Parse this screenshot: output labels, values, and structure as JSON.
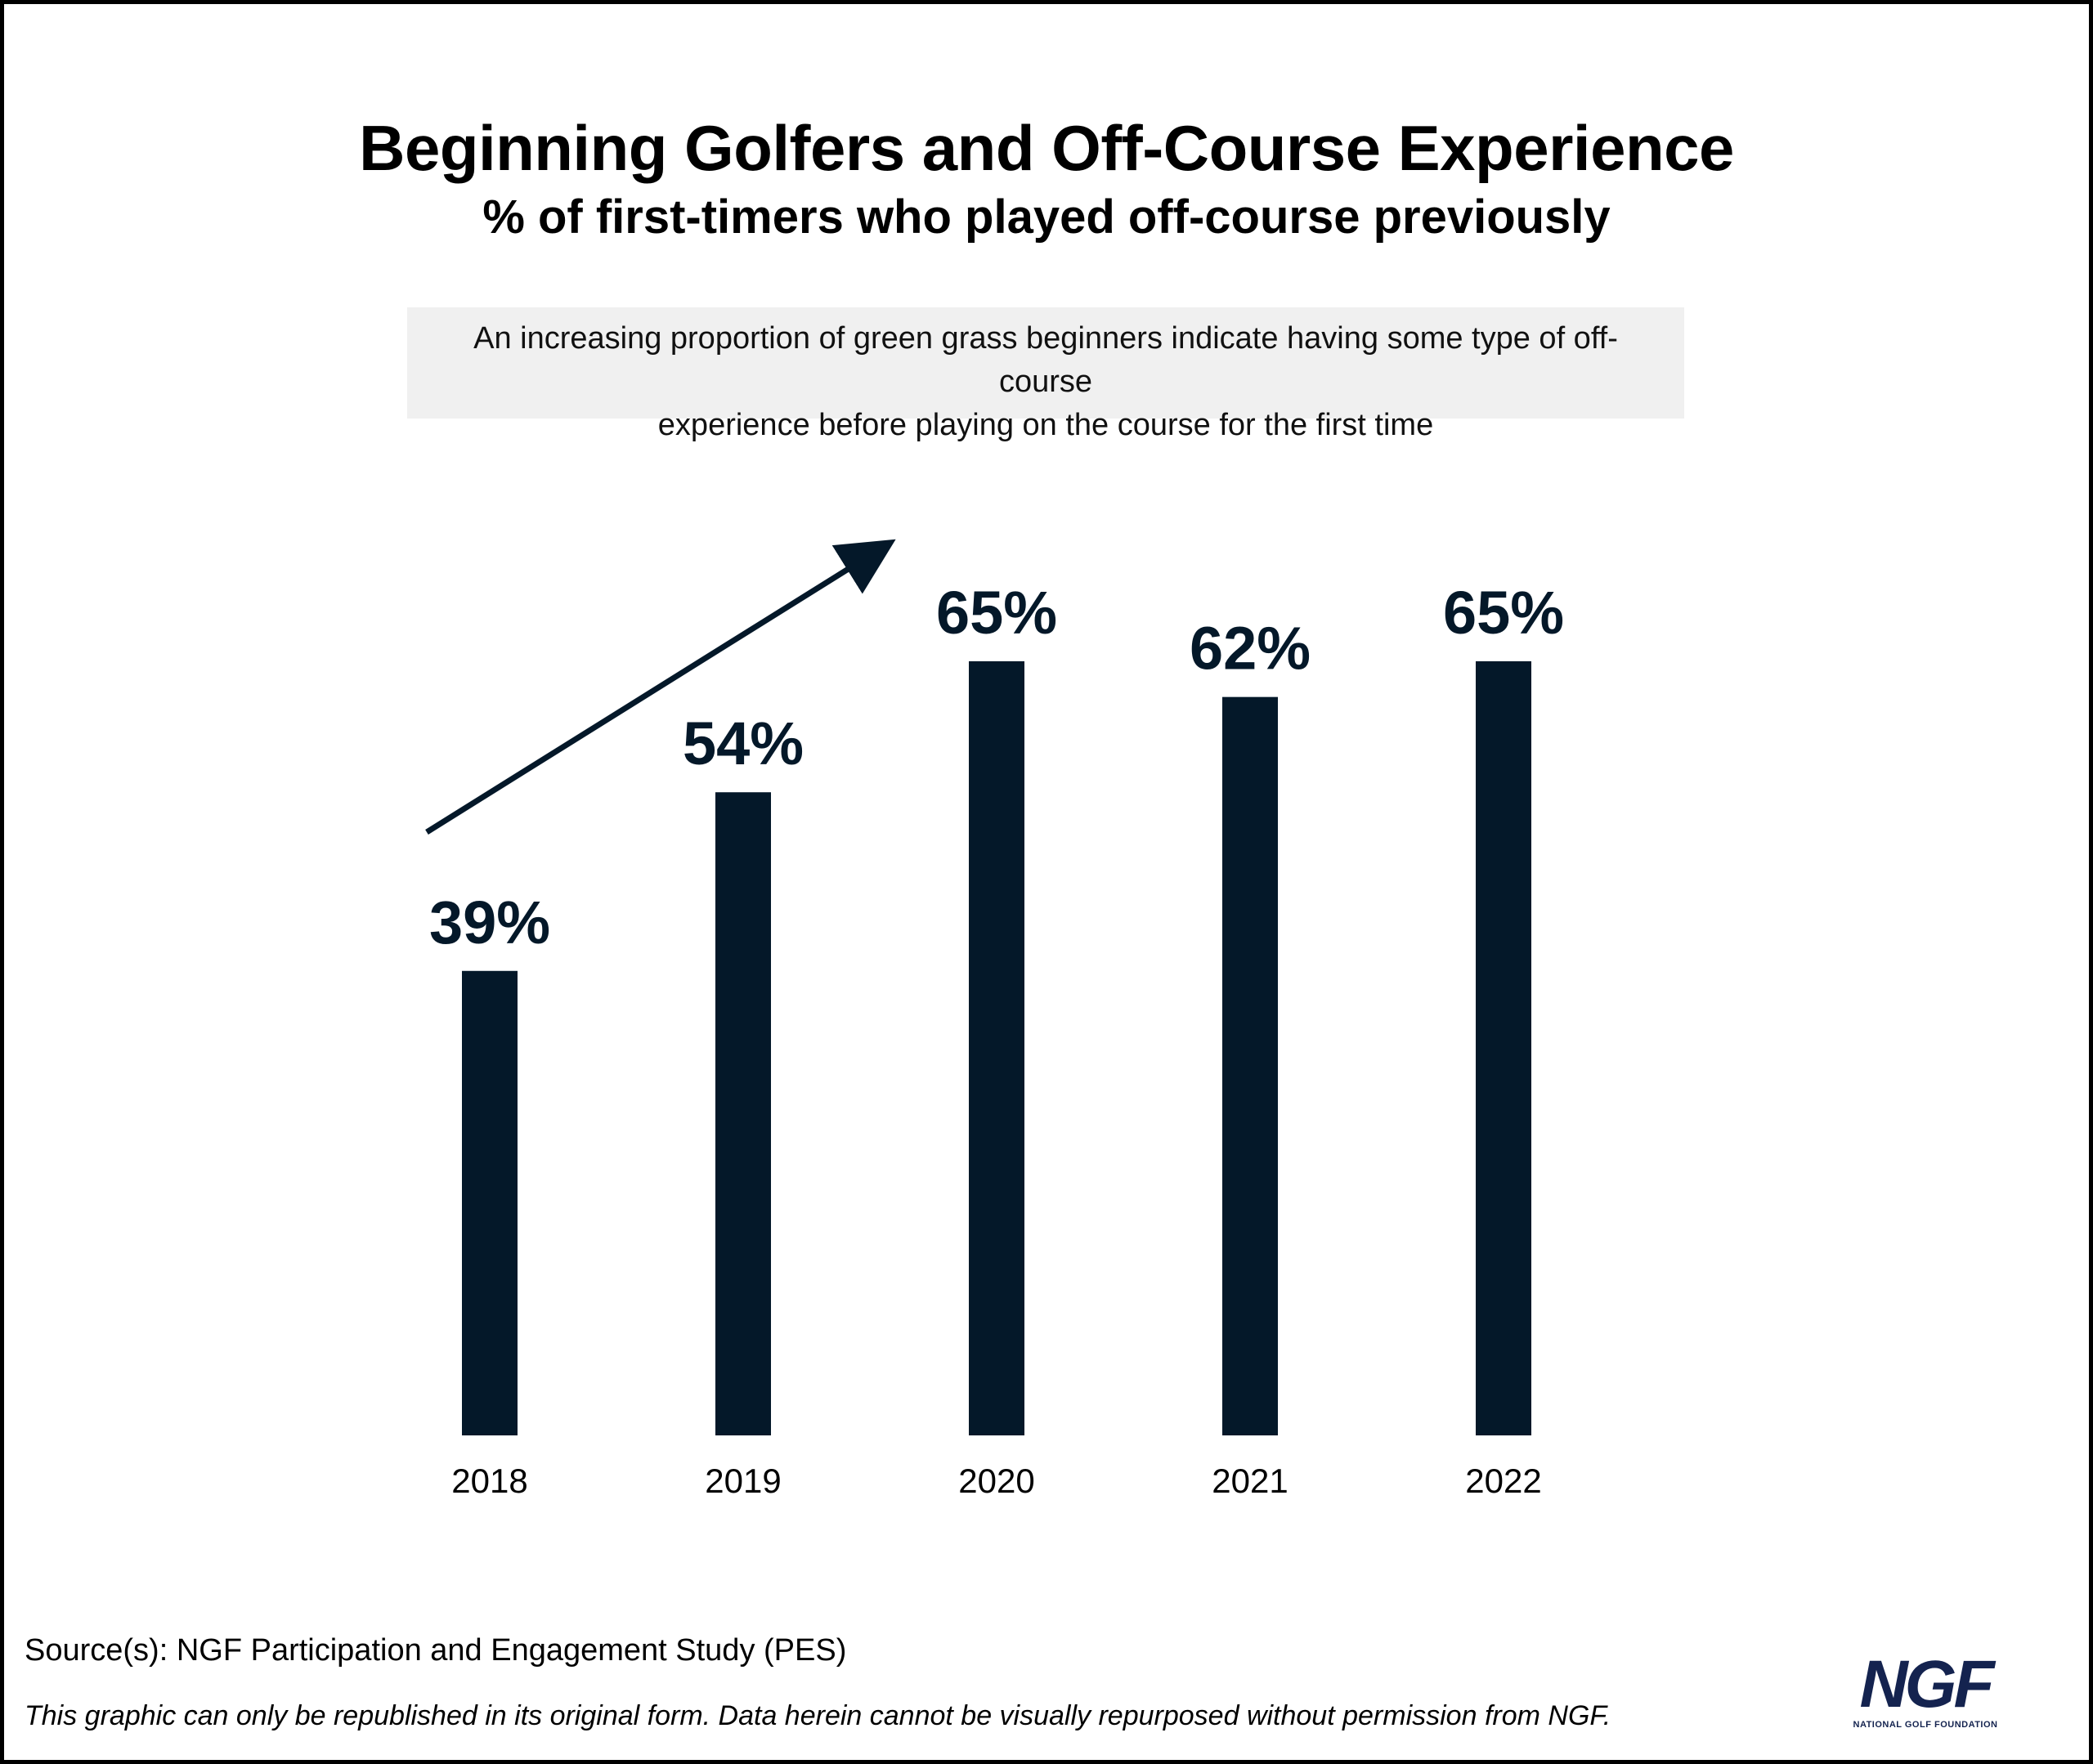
{
  "title": "Beginning Golfers and Off-Course Experience",
  "subtitle": "% of first-timers who played off-course previously",
  "callout": {
    "line1": "An increasing proportion of green grass beginners indicate having some type of off-course",
    "line2": "experience before playing on the course for the first time"
  },
  "chart_data": {
    "type": "bar",
    "categories": [
      "2018",
      "2019",
      "2020",
      "2021",
      "2022"
    ],
    "values": [
      39,
      54,
      65,
      62,
      65
    ],
    "data_labels": [
      "39%",
      "54%",
      "65%",
      "62%",
      "65%"
    ],
    "title": "Beginning Golfers and Off-Course Experience",
    "subtitle": "% of first-timers who played off-course previously",
    "xlabel": "",
    "ylabel": "",
    "ylim": [
      0,
      100
    ],
    "grid": false,
    "legend": "none",
    "annotation": "upward trend arrow",
    "bar_color": "#041829"
  },
  "footer": {
    "source": "Source(s): NGF Participation and Engagement Study (PES)",
    "disclaimer": "This graphic can only be republished in its original form. Data herein cannot be visually repurposed without permission from NGF."
  },
  "logo": {
    "mark": "NGF",
    "tagline": "NATIONAL GOLF FOUNDATION",
    "color": "#14234f"
  }
}
